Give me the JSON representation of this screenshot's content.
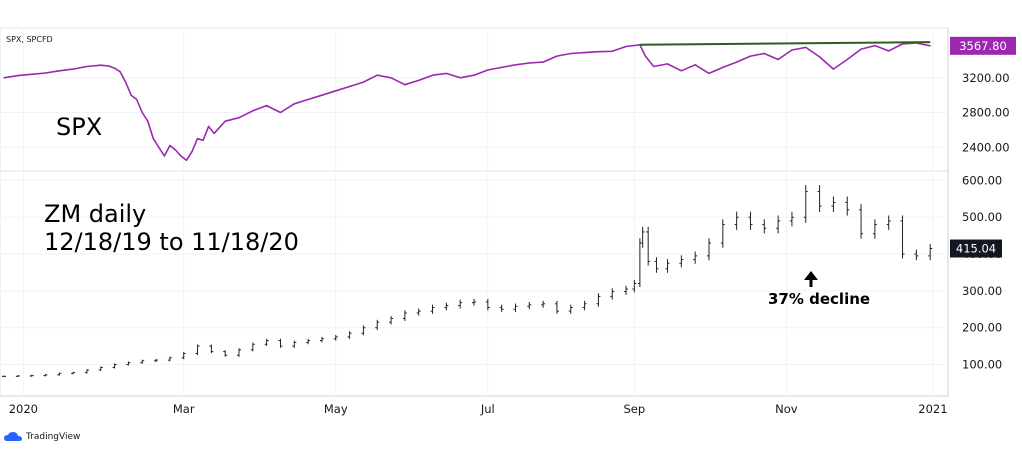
{
  "chart_data": [
    {
      "type": "line",
      "symbol_label": "SPX, SPCFD",
      "annotation": "SPX",
      "last_value_label": "3567.80",
      "color": "#9c27b0",
      "trendline_color": "#2e5d1e",
      "y_ticks": [
        2400,
        2800,
        3200
      ],
      "y_tick_labels": [
        "2400.00",
        "2800.00",
        "3200.00"
      ],
      "ylim": [
        2150,
        3750
      ],
      "x": [
        0,
        5,
        10,
        15,
        20,
        25,
        30,
        35,
        38,
        40,
        42,
        44,
        46,
        48,
        50,
        52,
        54,
        56,
        58,
        60,
        62,
        64,
        66,
        68,
        70,
        72,
        74,
        76,
        80,
        85,
        90,
        95,
        100,
        105,
        110,
        115,
        120,
        125,
        130,
        135,
        140,
        145,
        150,
        155,
        160,
        165,
        170,
        175,
        180,
        185,
        190,
        195,
        200,
        205,
        210,
        215,
        220,
        225,
        230,
        232,
        235,
        240,
        245,
        250,
        255,
        260,
        265,
        270,
        275,
        280,
        285,
        290,
        295,
        300,
        305,
        310,
        315,
        320,
        325,
        330,
        335
      ],
      "values": [
        3200,
        3225,
        3240,
        3255,
        3280,
        3300,
        3330,
        3345,
        3335,
        3310,
        3270,
        3150,
        3000,
        2950,
        2800,
        2700,
        2500,
        2400,
        2300,
        2420,
        2370,
        2300,
        2250,
        2350,
        2500,
        2480,
        2640,
        2560,
        2700,
        2740,
        2820,
        2880,
        2800,
        2900,
        2950,
        3000,
        3050,
        3100,
        3150,
        3230,
        3200,
        3120,
        3170,
        3230,
        3250,
        3200,
        3230,
        3290,
        3320,
        3350,
        3370,
        3380,
        3450,
        3480,
        3490,
        3500,
        3505,
        3560,
        3580,
        3450,
        3330,
        3360,
        3280,
        3350,
        3250,
        3320,
        3380,
        3450,
        3480,
        3410,
        3520,
        3550,
        3440,
        3300,
        3410,
        3530,
        3570,
        3510,
        3590,
        3600,
        3568
      ],
      "trendline": {
        "x": [
          230,
          335
        ],
        "y": [
          3580,
          3610
        ]
      }
    },
    {
      "type": "ohlc",
      "annotation_title": "ZM daily",
      "annotation_range": "12/18/19 to 11/18/20",
      "annotation_decline": "37% decline",
      "last_value_label": "415.04",
      "color": "#222222",
      "y_ticks": [
        100,
        200,
        300,
        400,
        500,
        600
      ],
      "y_tick_labels": [
        "100.00",
        "200.00",
        "300.00",
        "400.00",
        "500.00",
        "600.00"
      ],
      "ylim": [
        20,
        620
      ],
      "x": [
        0,
        5,
        10,
        15,
        20,
        25,
        30,
        35,
        40,
        45,
        50,
        55,
        60,
        65,
        70,
        75,
        80,
        85,
        90,
        95,
        100,
        105,
        110,
        115,
        120,
        125,
        130,
        135,
        140,
        145,
        150,
        155,
        160,
        165,
        170,
        175,
        180,
        185,
        190,
        195,
        200,
        205,
        210,
        215,
        220,
        225,
        228,
        230,
        231,
        233,
        236,
        240,
        245,
        250,
        255,
        260,
        265,
        270,
        275,
        280,
        285,
        290,
        295,
        300,
        305,
        310,
        315,
        320,
        325,
        330,
        335
      ],
      "values": [
        68,
        69,
        70,
        72,
        76,
        78,
        85,
        92,
        100,
        105,
        110,
        112,
        118,
        130,
        150,
        135,
        125,
        140,
        155,
        165,
        150,
        160,
        165,
        170,
        175,
        185,
        200,
        215,
        225,
        240,
        245,
        255,
        260,
        268,
        270,
        255,
        250,
        258,
        262,
        265,
        245,
        255,
        265,
        285,
        298,
        305,
        320,
        430,
        460,
        380,
        360,
        375,
        385,
        395,
        430,
        480,
        500,
        480,
        470,
        490,
        500,
        570,
        530,
        540,
        520,
        455,
        480,
        490,
        400,
        395,
        415
      ]
    }
  ],
  "x_axis": {
    "labels": [
      "2020",
      "Mar",
      "May",
      "Jul",
      "Sep",
      "Nov",
      "2021"
    ],
    "positions": [
      7,
      65,
      120,
      175,
      228,
      283,
      336
    ],
    "range": [
      0,
      340
    ]
  },
  "footer": {
    "logo_text": "TradingView"
  }
}
